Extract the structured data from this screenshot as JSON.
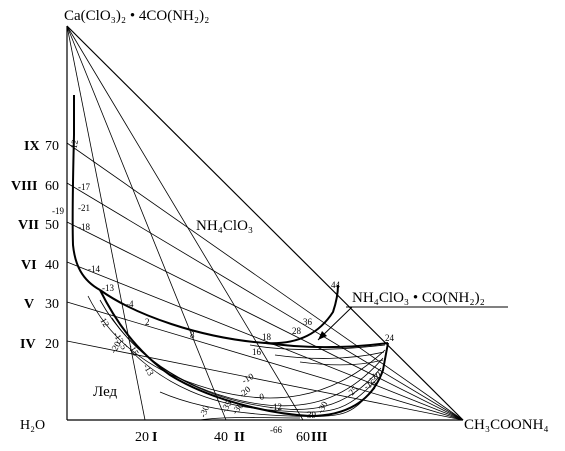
{
  "vertices": {
    "top": "Ca(ClO₃)₂ • 4CO(NH₂)₂",
    "bottom_left": "H₂O",
    "bottom_right": "CH₃COONH₄"
  },
  "fields": {
    "nh4clo3": "NH₄ClO₃",
    "complex": "NH₄ClO₃ • CO(NH₂)₂",
    "ice": "Лед"
  },
  "left_axis": [
    {
      "roman": "IX",
      "value": "70"
    },
    {
      "roman": "VIII",
      "value": "60"
    },
    {
      "roman": "VII",
      "value": "50"
    },
    {
      "roman": "VI",
      "value": "40"
    },
    {
      "roman": "V",
      "value": "30"
    },
    {
      "roman": "IV",
      "value": "20"
    }
  ],
  "bottom_axis": [
    {
      "value": "20",
      "roman": "I"
    },
    {
      "value": "40",
      "roman": "II"
    },
    {
      "value": "60",
      "roman": "III"
    }
  ],
  "temperature_labels": [
    "-12",
    "-17",
    "-19",
    "-21",
    "-18",
    "-14",
    "-13",
    "-4",
    "2",
    "8",
    "16",
    "18",
    "28",
    "36",
    "44",
    "24",
    "-30",
    "-35",
    "-30",
    "-20",
    "-10",
    "0",
    "-12",
    "-39",
    "-66",
    "-30",
    "-25",
    "-16",
    "-10",
    "12",
    "-13.5",
    "-20",
    "-15",
    "-13"
  ]
}
